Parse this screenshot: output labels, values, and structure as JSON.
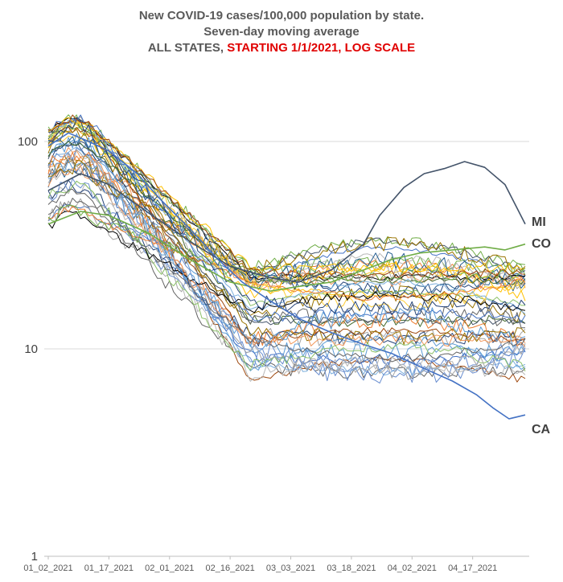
{
  "chart_data": {
    "type": "line",
    "title_line1": "New COVID-19 cases/100,000 population by state.",
    "title_line2": "Seven-day moving average",
    "title_line3_part1": "ALL STATES, ",
    "title_line3_part2": "STARTING 1/1/2021, LOG SCALE",
    "y_scale": "log",
    "ylim": [
      1,
      100
    ],
    "y_ticks": [
      1,
      10,
      100
    ],
    "y_tick_labels": [
      "1",
      "10",
      "100"
    ],
    "x_tick_labels": [
      "01_02_2021",
      "01_17_2021",
      "02_01_2021",
      "02_16_2021",
      "03_03_2021",
      "03_18_2021",
      "04_02_2021",
      "04_17_2021"
    ],
    "x_day_range": [
      0,
      118
    ],
    "x_tick_days": [
      0,
      15,
      30,
      45,
      60,
      75,
      90,
      105
    ],
    "grid": true,
    "labeled_series": [
      {
        "name": "MI",
        "color": "#44546a",
        "points": [
          [
            0,
            58
          ],
          [
            8,
            70
          ],
          [
            15,
            62
          ],
          [
            25,
            45
          ],
          [
            35,
            33
          ],
          [
            45,
            25
          ],
          [
            55,
            22
          ],
          [
            62,
            21
          ],
          [
            70,
            24
          ],
          [
            78,
            32
          ],
          [
            82,
            44
          ],
          [
            88,
            60
          ],
          [
            93,
            70
          ],
          [
            98,
            74
          ],
          [
            103,
            80
          ],
          [
            108,
            75
          ],
          [
            113,
            62
          ],
          [
            118,
            40
          ]
        ]
      },
      {
        "name": "CO",
        "color": "#70ad47",
        "points": [
          [
            0,
            40
          ],
          [
            8,
            46
          ],
          [
            15,
            44
          ],
          [
            25,
            36
          ],
          [
            35,
            27
          ],
          [
            45,
            21
          ],
          [
            55,
            19
          ],
          [
            62,
            20
          ],
          [
            70,
            21
          ],
          [
            78,
            24
          ],
          [
            85,
            27
          ],
          [
            92,
            29
          ],
          [
            100,
            30
          ],
          [
            108,
            31
          ],
          [
            113,
            30
          ],
          [
            118,
            32
          ]
        ]
      },
      {
        "name": "CA",
        "color": "#4472c4",
        "points": [
          [
            0,
            95
          ],
          [
            5,
            110
          ],
          [
            10,
            100
          ],
          [
            15,
            90
          ],
          [
            22,
            70
          ],
          [
            28,
            52
          ],
          [
            35,
            38
          ],
          [
            42,
            27
          ],
          [
            48,
            21
          ],
          [
            55,
            17
          ],
          [
            62,
            14
          ],
          [
            70,
            12
          ],
          [
            78,
            10.5
          ],
          [
            85,
            9.5
          ],
          [
            92,
            8.2
          ],
          [
            100,
            7.0
          ],
          [
            106,
            6.0
          ],
          [
            110,
            5.2
          ],
          [
            114,
            4.6
          ],
          [
            118,
            4.8
          ]
        ]
      }
    ],
    "other_series_count": 50,
    "state_labels": [
      "MI",
      "CO",
      "CA"
    ]
  }
}
